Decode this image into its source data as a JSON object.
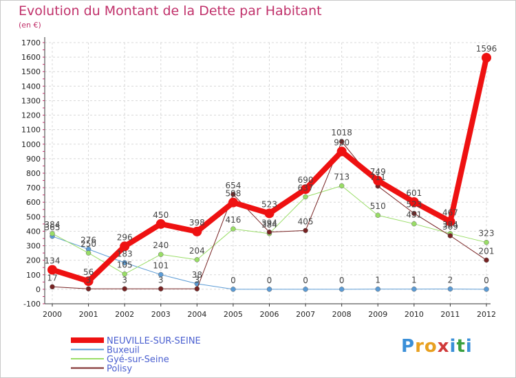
{
  "title": "Evolution du Montant de la Dette par Habitant",
  "unit": "(en €)",
  "logo": {
    "text": "Proxiti",
    "letter_colors": [
      "#3a8fd8",
      "#e8a020",
      "#e8a020",
      "#d03a3a",
      "#3a8fd8",
      "#3aa040",
      "#3a8fd8"
    ]
  },
  "chart_data": {
    "type": "line",
    "x": [
      "2000",
      "2001",
      "2002",
      "2003",
      "2004",
      "2005",
      "2006",
      "2007",
      "2008",
      "2009",
      "2010",
      "2011",
      "2012"
    ],
    "y_ticks": [
      "-100",
      "0",
      "100",
      "200",
      "300",
      "400",
      "500",
      "600",
      "700",
      "800",
      "900",
      "1000",
      "1100",
      "1200",
      "1300",
      "1400",
      "1500",
      "1600",
      "1700"
    ],
    "ylim": [
      -100,
      1700
    ],
    "grid": true,
    "legend_position": "bottom-left",
    "series": [
      {
        "name": "NEUVILLE-SUR-SEINE",
        "color": "#ee1111",
        "width": 8,
        "values": [
          134,
          56,
          296,
          450,
          398,
          598,
          523,
          690,
          950,
          749,
          601,
          467,
          1596
        ],
        "labels": [
          "134",
          "56",
          "296",
          "450",
          "398",
          "598",
          "523",
          "690",
          "950",
          "749",
          "601",
          "467",
          "1596"
        ]
      },
      {
        "name": "Buxeuil",
        "color": "#5b9bd5",
        "width": 1,
        "values": [
          365,
          276,
          183,
          101,
          38,
          0,
          0,
          0,
          0,
          1,
          1,
          2,
          0
        ],
        "labels": [
          "365",
          "276",
          "183",
          "101",
          "38",
          "0",
          "0",
          "0",
          "0",
          "1",
          "1",
          "2",
          "0"
        ]
      },
      {
        "name": "Gyé-sur-Seine",
        "color": "#99dd66",
        "width": 1,
        "values": [
          384,
          250,
          105,
          240,
          204,
          416,
          384,
          637,
          713,
          510,
          451,
          384,
          323
        ],
        "labels": [
          "384",
          "250",
          "105",
          "240",
          "204",
          "416",
          "384",
          "637",
          "713",
          "510",
          "451",
          "384",
          "323"
        ]
      },
      {
        "name": "Polisy",
        "color": "#772222",
        "width": 1,
        "values": [
          17,
          3,
          3,
          3,
          3,
          654,
          394,
          405,
          1018,
          711,
          523,
          369,
          201
        ],
        "labels": [
          "17",
          "3",
          "3",
          "3",
          "3",
          "654",
          "394",
          "405",
          "1018",
          "711",
          "523",
          "369",
          "201"
        ]
      }
    ]
  }
}
